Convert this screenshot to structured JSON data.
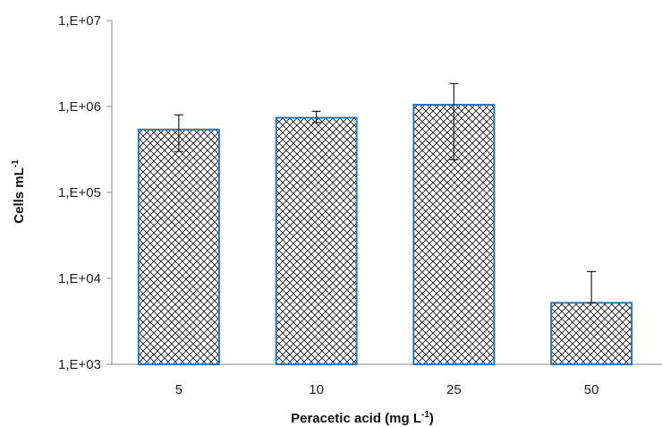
{
  "chart_data": {
    "type": "bar",
    "xlabel": "Peracetic acid (mg L",
    "xlabel_sup": "-1",
    "xlabel_close": ")",
    "ylabel": "Cells mL",
    "ylabel_sup": "-1",
    "yscale": "log",
    "ylim": [
      1000,
      10000000
    ],
    "yticks": [
      1000,
      10000,
      100000,
      1000000,
      10000000
    ],
    "ytick_labels": [
      "1,E+03",
      "1,E+04",
      "1,E+05",
      "1,E+06",
      "1,E+07"
    ],
    "categories": [
      "5",
      "10",
      "25",
      "50"
    ],
    "values": [
      540000,
      740000,
      1050000,
      5200
    ],
    "error_upper": [
      800000,
      880000,
      1850000,
      12000
    ],
    "error_lower": [
      300000,
      650000,
      240000,
      5200
    ],
    "bar_fill": "hatched crosshatch pattern",
    "bar_border": "#2e75b6",
    "grid": false,
    "legend": "none"
  }
}
